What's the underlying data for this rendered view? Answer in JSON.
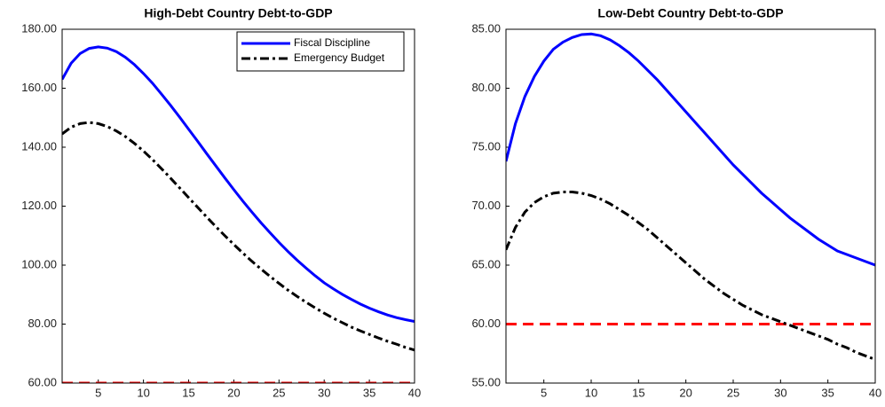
{
  "chart_data": [
    {
      "type": "line",
      "title": "High-Debt Country Debt-to-GDP",
      "x": [
        1,
        2,
        3,
        4,
        5,
        6,
        7,
        8,
        9,
        10,
        11,
        12,
        13,
        14,
        15,
        16,
        17,
        18,
        19,
        20,
        21,
        22,
        23,
        24,
        25,
        26,
        27,
        28,
        29,
        30,
        31,
        32,
        33,
        34,
        35,
        36,
        37,
        38,
        39,
        40
      ],
      "series": [
        {
          "name": "Fiscal Discipline",
          "color": "#0000ff",
          "style": "solid",
          "values": [
            163,
            168.5,
            171.8,
            173.5,
            174,
            173.6,
            172.4,
            170.5,
            168,
            165,
            161.7,
            158,
            154.2,
            150.2,
            146.1,
            142,
            137.8,
            133.7,
            129.6,
            125.6,
            121.7,
            118,
            114.4,
            111,
            107.7,
            104.6,
            101.7,
            99,
            96.4,
            94,
            92,
            90.1,
            88.4,
            86.8,
            85.4,
            84.2,
            83.1,
            82.2,
            81.5,
            80.9
          ]
        },
        {
          "name": "Emergency Budget",
          "color": "#000000",
          "style": "dashdot",
          "values": [
            144.5,
            146.8,
            148,
            148.4,
            148,
            147,
            145.5,
            143.6,
            141.3,
            138.7,
            135.8,
            132.7,
            129.5,
            126.2,
            122.9,
            119.6,
            116.3,
            113.1,
            110,
            107,
            104.1,
            101.3,
            98.7,
            96.2,
            93.8,
            91.5,
            89.4,
            87.4,
            85.5,
            83.7,
            82,
            80.5,
            79,
            77.7,
            76.5,
            75.3,
            74.2,
            73.2,
            72.1,
            71.2
          ]
        }
      ],
      "reference_lines": [
        {
          "value": 60,
          "color": "#ff0000",
          "style": "dashed"
        }
      ],
      "xlim": [
        1,
        40
      ],
      "xticks": [
        5,
        10,
        15,
        20,
        25,
        30,
        35,
        40
      ],
      "ylim": [
        60,
        180
      ],
      "yticks": [
        {
          "value": 60,
          "label": "60.00"
        },
        {
          "value": 80,
          "label": "80.00"
        },
        {
          "value": 100,
          "label": "100.00"
        },
        {
          "value": 120,
          "label": "120.00"
        },
        {
          "value": 140,
          "label": "140.00"
        },
        {
          "value": 160,
          "label": "160.00"
        },
        {
          "value": 180,
          "label": "180.00"
        }
      ],
      "legend": "upper right"
    },
    {
      "type": "line",
      "title": "Low-Debt Country Debt-to-GDP",
      "x": [
        1,
        2,
        3,
        4,
        5,
        6,
        7,
        8,
        9,
        10,
        11,
        12,
        13,
        14,
        15,
        16,
        17,
        18,
        19,
        20,
        21,
        22,
        23,
        24,
        25,
        26,
        27,
        28,
        29,
        30,
        31,
        32,
        33,
        34,
        35,
        36,
        37,
        38,
        39,
        40
      ],
      "series": [
        {
          "name": "Fiscal Discipline",
          "color": "#0000ff",
          "style": "solid",
          "values": [
            73.8,
            77,
            79.3,
            81,
            82.3,
            83.3,
            83.9,
            84.3,
            84.55,
            84.6,
            84.45,
            84.1,
            83.6,
            83,
            82.3,
            81.5,
            80.7,
            79.8,
            78.9,
            78,
            77.1,
            76.2,
            75.3,
            74.4,
            73.5,
            72.7,
            71.9,
            71.1,
            70.4,
            69.7,
            69,
            68.4,
            67.8,
            67.2,
            66.7,
            66.2,
            65.9,
            65.6,
            65.3,
            65
          ]
        },
        {
          "name": "Emergency Budget",
          "color": "#000000",
          "style": "dashdot",
          "values": [
            66.3,
            68.2,
            69.5,
            70.3,
            70.8,
            71.1,
            71.2,
            71.2,
            71.1,
            70.9,
            70.6,
            70.2,
            69.7,
            69.2,
            68.6,
            68,
            67.3,
            66.6,
            65.9,
            65.2,
            64.5,
            63.8,
            63.2,
            62.6,
            62.1,
            61.6,
            61.2,
            60.8,
            60.5,
            60.2,
            59.9,
            59.6,
            59.3,
            59,
            58.7,
            58.3,
            58,
            57.6,
            57.3,
            57
          ]
        }
      ],
      "reference_lines": [
        {
          "value": 60,
          "color": "#ff0000",
          "style": "dashed"
        }
      ],
      "xlim": [
        1,
        40
      ],
      "xticks": [
        5,
        10,
        15,
        20,
        25,
        30,
        35,
        40
      ],
      "ylim": [
        55,
        85
      ],
      "yticks": [
        {
          "value": 55,
          "label": "55.00"
        },
        {
          "value": 60,
          "label": "60.00"
        },
        {
          "value": 65,
          "label": "65.00"
        },
        {
          "value": 70,
          "label": "70.00"
        },
        {
          "value": 75,
          "label": "75.00"
        },
        {
          "value": 80,
          "label": "80.00"
        },
        {
          "value": 85,
          "label": "85.00"
        }
      ]
    }
  ]
}
